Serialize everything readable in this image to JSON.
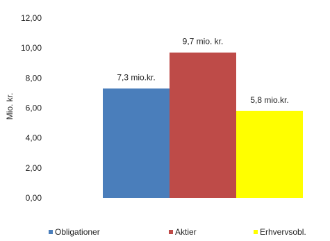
{
  "chart_data": {
    "type": "bar",
    "categories": [
      "Obligationer",
      "Aktier",
      "Erhvervsobl."
    ],
    "values": [
      7.3,
      9.7,
      5.8
    ],
    "data_labels": [
      "7,3 mio.kr.",
      "9,7 mio. kr.",
      "5,8 mio.kr."
    ],
    "colors": [
      "#4a7ebb",
      "#be4b48",
      "#ffff00"
    ],
    "ylabel": "Mio. kr.",
    "ylim": [
      0,
      12
    ],
    "yticks": [
      0,
      2,
      4,
      6,
      8,
      10,
      12
    ],
    "ytick_labels": [
      "0,00",
      "2,00",
      "4,00",
      "6,00",
      "8,00",
      "10,00",
      "12,00"
    ],
    "grid": false,
    "legend": {
      "placement": "bottom",
      "entries": [
        "Obligationer",
        "Aktier",
        "Erhvervsobl."
      ]
    }
  }
}
